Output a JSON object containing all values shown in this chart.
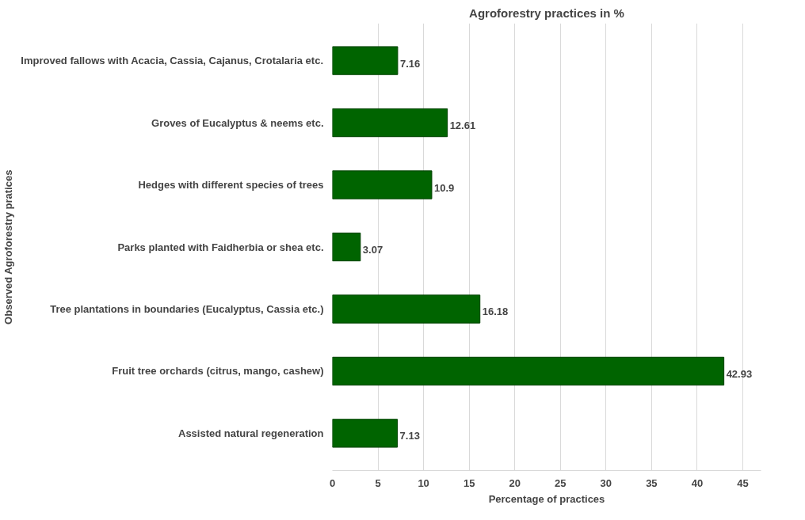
{
  "chart_data": {
    "type": "bar",
    "orientation": "horizontal",
    "title": "Agroforestry practices in %",
    "xlabel": "Percentage of practices",
    "ylabel": "Observed Agroforestry pratices",
    "categories": [
      "Improved fallows with Acacia, Cassia, Cajanus, Crotalaria etc.",
      "Groves of Eucalyptus & neems etc.",
      "Hedges with different species of trees",
      "Parks planted with Faidherbia or shea etc.",
      "Tree plantations in boundaries (Eucalyptus, Cassia etc.)",
      "Fruit tree orchards (citrus, mango, cashew)",
      "Assisted natural regeneration"
    ],
    "values": [
      7.16,
      12.61,
      10.9,
      3.07,
      16.18,
      42.93,
      7.13
    ],
    "color": "#006400",
    "xlim": [
      0,
      47
    ],
    "xticks": [
      0,
      5,
      10,
      15,
      20,
      25,
      30,
      35,
      40,
      45
    ],
    "grid": "x",
    "data_labels": true
  }
}
